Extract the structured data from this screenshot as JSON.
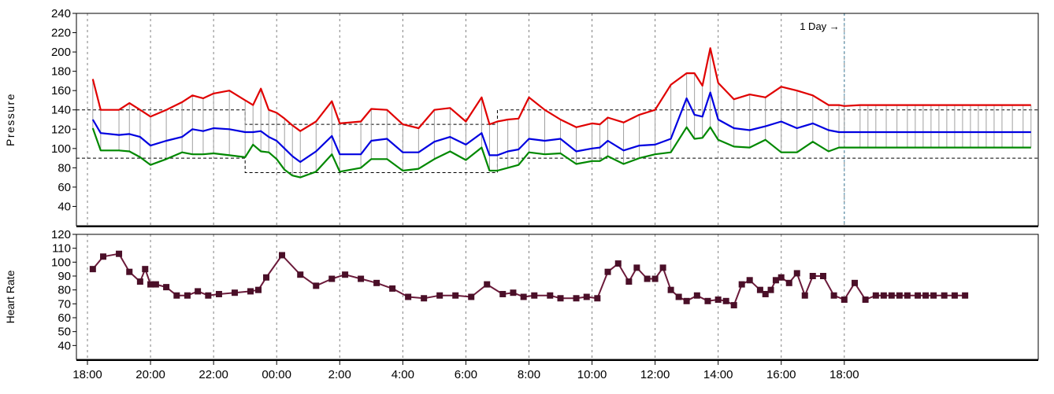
{
  "chart_data": [
    {
      "type": "line",
      "ylabel": "Pressure",
      "ylim": [
        20,
        240
      ],
      "yticks": [
        40,
        60,
        80,
        100,
        120,
        140,
        160,
        180,
        200,
        220,
        240
      ],
      "xticks": [
        "18:00",
        "20:00",
        "22:00",
        "00:00",
        "2:00",
        "4:00",
        "6:00",
        "8:00",
        "10:00",
        "12:00",
        "14:00",
        "16:00",
        "18:00"
      ],
      "grid": "vertical dashed",
      "annotation": "1 Day",
      "thresholds": {
        "systolic_day": 140,
        "diastolic_day": 90,
        "systolic_night": 125,
        "diastolic_night": 75
      },
      "colors": {
        "systolic": "#e00000",
        "mean": "#0000e0",
        "diastolic": "#008800",
        "range_lines": "#a0a0a0"
      },
      "t": [
        18.17,
        18.42,
        19.0,
        19.33,
        19.67,
        20.0,
        20.5,
        21.0,
        21.33,
        21.67,
        22.0,
        22.5,
        23.0,
        23.25,
        23.5,
        23.75,
        24.0,
        24.25,
        24.5,
        24.75,
        25.25,
        25.75,
        26.0,
        26.67,
        27.0,
        27.5,
        28.0,
        28.5,
        29.0,
        29.5,
        30.0,
        30.5,
        30.75,
        31.0,
        31.33,
        31.67,
        32.0,
        32.5,
        33.0,
        33.5,
        34.0,
        34.25,
        34.5,
        35.0,
        35.5,
        36.0,
        36.5,
        37.0,
        37.25,
        37.5,
        37.75,
        38.0,
        38.5,
        39.0,
        39.5,
        40.0,
        40.5,
        41.0,
        41.5,
        41.83,
        42.0,
        42.5,
        42.75,
        43.0,
        43.33,
        43.67,
        44.0,
        44.25,
        44.5,
        44.75,
        45.0,
        45.25,
        45.5,
        45.75,
        46.0,
        46.25,
        46.5,
        46.75,
        47.0,
        47.33,
        47.67,
        47.92
      ],
      "systolic": [
        172,
        140,
        140,
        147,
        140,
        133,
        140,
        148,
        155,
        152,
        157,
        160,
        150,
        145,
        162,
        140,
        137,
        131,
        124,
        118,
        128,
        149,
        126,
        128,
        141,
        140,
        125,
        121,
        140,
        142,
        128,
        153,
        125,
        128,
        130,
        131,
        153,
        140,
        130,
        122,
        126,
        125,
        132,
        127,
        135,
        140,
        166,
        178,
        178,
        165,
        204,
        168,
        151,
        156,
        153,
        164,
        160,
        155,
        145,
        145,
        144,
        145,
        145,
        145,
        145,
        145,
        145,
        145,
        145,
        145,
        145,
        145,
        145,
        145,
        145,
        145,
        145,
        145,
        145,
        145,
        145,
        145
      ],
      "mean": [
        130,
        116,
        114,
        115,
        112,
        103,
        108,
        112,
        120,
        118,
        121,
        120,
        117,
        117,
        118,
        112,
        108,
        100,
        92,
        86,
        97,
        113,
        94,
        94,
        108,
        110,
        96,
        96,
        107,
        112,
        104,
        116,
        93,
        93,
        97,
        99,
        110,
        108,
        110,
        97,
        100,
        101,
        108,
        98,
        103,
        104,
        110,
        152,
        135,
        133,
        158,
        130,
        121,
        119,
        123,
        128,
        121,
        126,
        119,
        117,
        117,
        117,
        117,
        117,
        117,
        117,
        117,
        117,
        117,
        117,
        117,
        117,
        117,
        117,
        117,
        117,
        117,
        117,
        117,
        117,
        117,
        117
      ],
      "diastolic": [
        121,
        98,
        98,
        97,
        91,
        83,
        89,
        96,
        94,
        94,
        95,
        93,
        91,
        104,
        97,
        96,
        89,
        78,
        72,
        70,
        76,
        94,
        76,
        80,
        89,
        89,
        77,
        79,
        89,
        97,
        88,
        101,
        77,
        77,
        80,
        83,
        96,
        94,
        95,
        84,
        87,
        87,
        92,
        84,
        90,
        94,
        96,
        122,
        110,
        111,
        122,
        109,
        102,
        101,
        109,
        96,
        96,
        107,
        97,
        101,
        101,
        101,
        101,
        101,
        101,
        101,
        101,
        101,
        101,
        101,
        101,
        101,
        101,
        101,
        101,
        101,
        101,
        101,
        101,
        101,
        101,
        101
      ]
    },
    {
      "type": "line",
      "ylabel": "Heart Rate",
      "ylim": [
        30,
        120
      ],
      "yticks": [
        40,
        50,
        60,
        70,
        80,
        90,
        100,
        110,
        120
      ],
      "xticks": [
        "18:00",
        "20:00",
        "22:00",
        "00:00",
        "2:00",
        "4:00",
        "6:00",
        "8:00",
        "10:00",
        "12:00",
        "14:00",
        "16:00",
        "18:00"
      ],
      "grid": "vertical dashed",
      "colors": {
        "line": "#6b1a3a",
        "marker": "#4a0f28"
      },
      "t": [
        18.17,
        18.5,
        19.0,
        19.33,
        19.67,
        19.83,
        20.0,
        20.17,
        20.5,
        20.83,
        21.17,
        21.5,
        21.83,
        22.17,
        22.67,
        23.17,
        23.42,
        23.67,
        24.17,
        24.75,
        25.25,
        25.75,
        26.17,
        26.67,
        27.17,
        27.67,
        28.17,
        28.67,
        29.17,
        29.67,
        30.17,
        30.67,
        31.17,
        31.5,
        31.83,
        32.17,
        32.67,
        33.0,
        33.5,
        33.83,
        34.17,
        34.5,
        34.83,
        35.17,
        35.42,
        35.75,
        36.0,
        36.25,
        36.5,
        36.75,
        37.0,
        37.33,
        37.67,
        38.0,
        38.25,
        38.5,
        38.75,
        39.0,
        39.33,
        39.5,
        39.67,
        39.83,
        40.0,
        40.25,
        40.5,
        40.75,
        41.0,
        41.33,
        41.67,
        42.0,
        42.33,
        42.67,
        43.0,
        43.25,
        43.5,
        43.75,
        44.0,
        44.33,
        44.58,
        44.83,
        45.17,
        45.5,
        45.83
      ],
      "values": [
        95,
        104,
        106,
        93,
        86,
        95,
        84,
        84,
        82,
        76,
        76,
        79,
        76,
        77,
        78,
        79,
        80,
        89,
        105,
        91,
        83,
        88,
        91,
        88,
        85,
        81,
        75,
        74,
        76,
        76,
        75,
        84,
        77,
        78,
        75,
        76,
        76,
        74,
        74,
        75,
        74,
        93,
        99,
        86,
        96,
        88,
        88,
        96,
        80,
        75,
        72,
        76,
        72,
        73,
        72,
        69,
        84,
        87,
        80,
        77,
        80,
        87,
        89,
        85,
        92,
        76,
        90,
        90,
        76,
        73,
        85,
        73,
        76,
        76,
        76,
        76,
        76,
        76,
        76,
        76,
        76,
        76,
        76
      ]
    }
  ]
}
